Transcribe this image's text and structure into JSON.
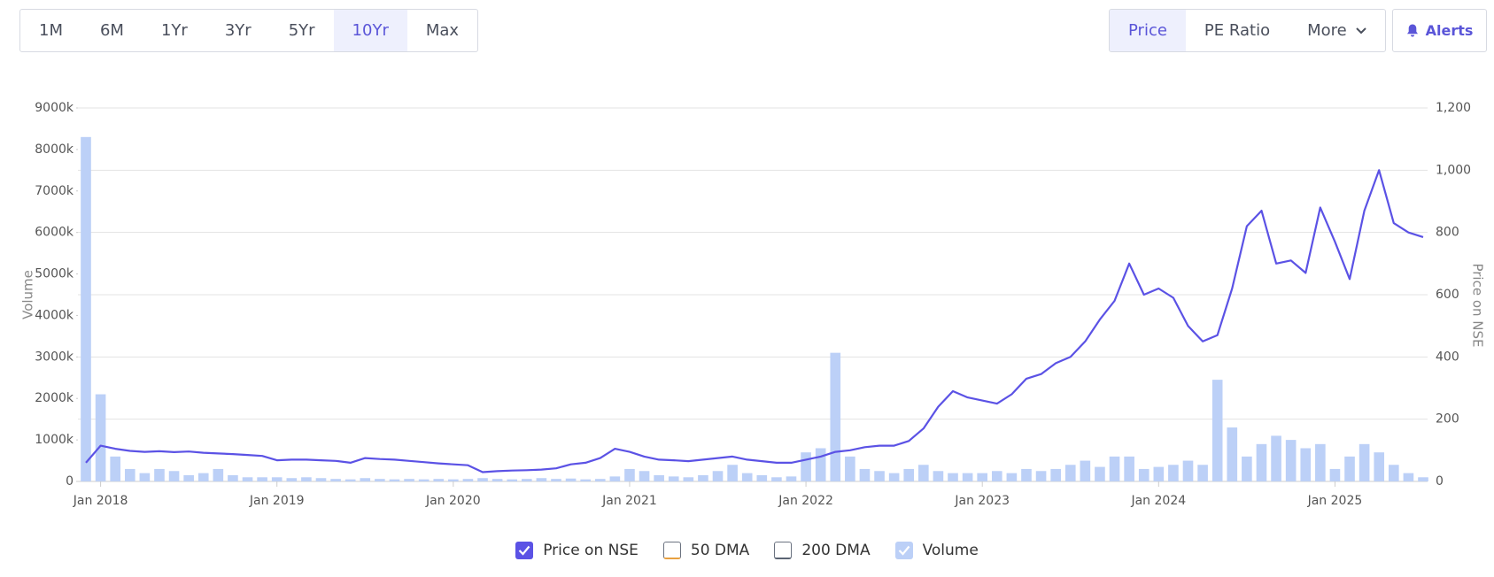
{
  "controls": {
    "ranges": [
      {
        "label": "1M"
      },
      {
        "label": "6M"
      },
      {
        "label": "1Yr"
      },
      {
        "label": "3Yr"
      },
      {
        "label": "5Yr"
      },
      {
        "label": "10Yr",
        "active": true
      },
      {
        "label": "Max"
      }
    ],
    "views": [
      {
        "label": "Price",
        "active": true
      },
      {
        "label": "PE Ratio"
      },
      {
        "label": "More"
      }
    ],
    "alerts": "Alerts"
  },
  "chart_data": {
    "type": "combo",
    "y_label": "Volume",
    "y2_label": "Price on NSE",
    "x": [
      "2017-12",
      "2018-01",
      "2018-02",
      "2018-03",
      "2018-04",
      "2018-05",
      "2018-06",
      "2018-07",
      "2018-08",
      "2018-09",
      "2018-10",
      "2018-11",
      "2018-12",
      "2019-01",
      "2019-02",
      "2019-03",
      "2019-04",
      "2019-05",
      "2019-06",
      "2019-07",
      "2019-08",
      "2019-09",
      "2019-10",
      "2019-11",
      "2019-12",
      "2020-01",
      "2020-02",
      "2020-03",
      "2020-04",
      "2020-05",
      "2020-06",
      "2020-07",
      "2020-08",
      "2020-09",
      "2020-10",
      "2020-11",
      "2020-12",
      "2021-01",
      "2021-02",
      "2021-03",
      "2021-04",
      "2021-05",
      "2021-06",
      "2021-07",
      "2021-08",
      "2021-09",
      "2021-10",
      "2021-11",
      "2021-12",
      "2022-01",
      "2022-02",
      "2022-03",
      "2022-04",
      "2022-05",
      "2022-06",
      "2022-07",
      "2022-08",
      "2022-09",
      "2022-10",
      "2022-11",
      "2022-12",
      "2023-01",
      "2023-02",
      "2023-03",
      "2023-04",
      "2023-05",
      "2023-06",
      "2023-07",
      "2023-08",
      "2023-09",
      "2023-10",
      "2023-11",
      "2023-12",
      "2024-01",
      "2024-02",
      "2024-03",
      "2024-04",
      "2024-05",
      "2024-06",
      "2024-07",
      "2024-08",
      "2024-09",
      "2024-10",
      "2024-11",
      "2024-12",
      "2025-01",
      "2025-02",
      "2025-03",
      "2025-04",
      "2025-05",
      "2025-06",
      "2025-07"
    ],
    "xlim": [
      "2017-12",
      "2025-07"
    ],
    "xticks": [
      {
        "value": "2018-01",
        "label": "Jan 2018"
      },
      {
        "value": "2019-01",
        "label": "Jan 2019"
      },
      {
        "value": "2020-01",
        "label": "Jan 2020"
      },
      {
        "value": "2021-01",
        "label": "Jan 2021"
      },
      {
        "value": "2022-01",
        "label": "Jan 2022"
      },
      {
        "value": "2023-01",
        "label": "Jan 2023"
      },
      {
        "value": "2024-01",
        "label": "Jan 2024"
      },
      {
        "value": "2025-01",
        "label": "Jan 2025"
      }
    ],
    "ylim": [
      0,
      9000
    ],
    "yticks": [
      0,
      {
        "value": 1000,
        "label": "1000k"
      },
      {
        "value": 2000,
        "label": "2000k"
      },
      {
        "value": 3000,
        "label": "3000k"
      },
      {
        "value": 4000,
        "label": "4000k"
      },
      {
        "value": 5000,
        "label": "5000k"
      },
      {
        "value": 6000,
        "label": "6000k"
      },
      {
        "value": 7000,
        "label": "7000k"
      },
      {
        "value": 8000,
        "label": "8000k"
      },
      {
        "value": 9000,
        "label": "9000k"
      }
    ],
    "y2lim": [
      0,
      1200
    ],
    "y2ticks": [
      0,
      200,
      400,
      600,
      800,
      {
        "value": 1000,
        "label": "1,000"
      },
      {
        "value": 1200,
        "label": "1,200"
      }
    ],
    "grid": true,
    "series": [
      {
        "name": "Price on NSE",
        "type": "line",
        "axis": "y2",
        "color": "#5b52e5",
        "checked": true,
        "values": [
          60,
          115,
          105,
          98,
          95,
          97,
          94,
          96,
          92,
          90,
          88,
          85,
          82,
          68,
          70,
          70,
          68,
          66,
          60,
          75,
          72,
          70,
          66,
          62,
          58,
          55,
          52,
          30,
          33,
          35,
          36,
          38,
          42,
          55,
          60,
          75,
          105,
          95,
          80,
          70,
          68,
          65,
          70,
          75,
          80,
          70,
          65,
          60,
          60,
          70,
          80,
          95,
          100,
          110,
          115,
          115,
          130,
          170,
          240,
          290,
          270,
          260,
          250,
          280,
          330,
          345,
          380,
          400,
          450,
          520,
          580,
          700,
          600,
          620,
          590,
          500,
          450,
          470,
          620,
          820,
          870,
          700,
          710,
          670,
          880,
          770,
          650,
          870,
          1000,
          830,
          800,
          785
        ]
      },
      {
        "name": "Volume",
        "type": "bar",
        "color": "#bcd0f7",
        "checked": true,
        "values": [
          8300,
          2100,
          600,
          300,
          200,
          300,
          250,
          150,
          200,
          300,
          150,
          100,
          100,
          100,
          80,
          100,
          80,
          60,
          50,
          80,
          60,
          50,
          60,
          50,
          60,
          50,
          60,
          80,
          60,
          50,
          60,
          80,
          60,
          70,
          50,
          60,
          120,
          300,
          250,
          150,
          120,
          100,
          150,
          250,
          400,
          200,
          150,
          100,
          120,
          700,
          800,
          3100,
          600,
          300,
          250,
          200,
          300,
          400,
          250,
          200,
          200,
          200,
          250,
          200,
          300,
          250,
          300,
          400,
          500,
          350,
          600,
          600,
          300,
          350,
          400,
          500,
          400,
          2450,
          1300,
          600,
          900,
          1100,
          1000,
          800,
          900,
          300,
          600,
          900,
          700,
          400,
          200,
          100
        ]
      }
    ],
    "other_indicators": [
      {
        "name": "50 DMA",
        "color": "#e8a040",
        "checked": false
      },
      {
        "name": "200 DMA",
        "color": "#5b6473",
        "checked": false
      }
    ]
  }
}
